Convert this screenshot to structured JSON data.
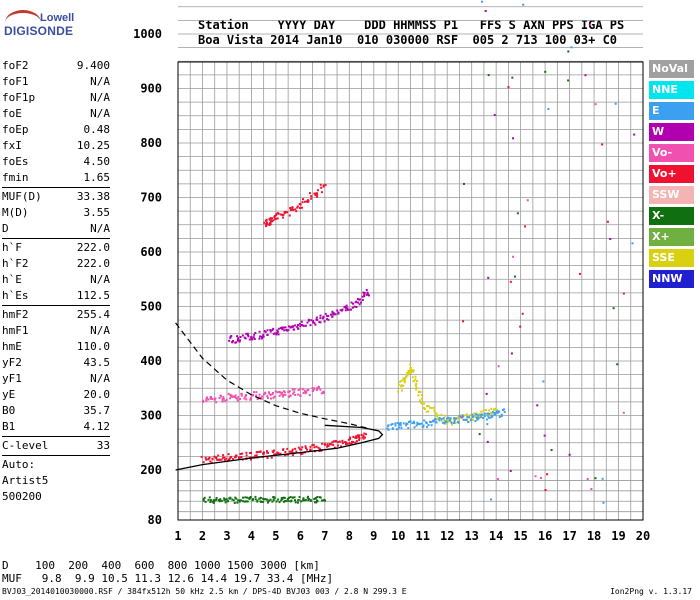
{
  "logo": {
    "line1": "Lowell",
    "line2": "DIGISONDE"
  },
  "header": {
    "labels": "Station    YYYY DAY    DDD HHMMSS P1   FFS S AXN PPS IGA PS",
    "values": "Boa Vista 2014 Jan10  010 030000 RSF  005 2 713 100 03+ C0"
  },
  "params": [
    {
      "name": "foF2",
      "value": "9.400"
    },
    {
      "name": "foF1",
      "value": "N/A"
    },
    {
      "name": "foF1p",
      "value": "N/A"
    },
    {
      "name": "foE",
      "value": "N/A"
    },
    {
      "name": "foEp",
      "value": "0.48"
    },
    {
      "name": "fxI",
      "value": "10.25"
    },
    {
      "name": "foEs",
      "value": "4.50"
    },
    {
      "name": "fmin",
      "value": "1.65"
    },
    {
      "sep": true
    },
    {
      "name": "MUF(D)",
      "value": "33.38"
    },
    {
      "name": "M(D)",
      "value": "3.55"
    },
    {
      "name": "D",
      "value": "N/A"
    },
    {
      "sep": true
    },
    {
      "name": "h`F",
      "value": "222.0"
    },
    {
      "name": "h`F2",
      "value": "222.0"
    },
    {
      "name": "h`E",
      "value": "N/A"
    },
    {
      "name": "h`Es",
      "value": "112.5"
    },
    {
      "sep": true
    },
    {
      "name": "hmF2",
      "value": "255.4"
    },
    {
      "name": "hmF1",
      "value": "N/A"
    },
    {
      "name": "hmE",
      "value": "110.0"
    },
    {
      "name": "yF2",
      "value": "43.5"
    },
    {
      "name": "yF1",
      "value": "N/A"
    },
    {
      "name": "yE",
      "value": "20.0"
    },
    {
      "name": "B0",
      "value": "35.7"
    },
    {
      "name": "B1",
      "value": "4.12"
    },
    {
      "sep": true
    },
    {
      "name": "C-level",
      "value": "33"
    },
    {
      "sep": true
    }
  ],
  "auto": {
    "line1": "Auto:",
    "line2": "Artist5",
    "line3": "500200"
  },
  "legend": [
    {
      "label": "NoVal",
      "color": "#a0a0a0"
    },
    {
      "label": "NNE",
      "color": "#00e5ee"
    },
    {
      "label": "E",
      "color": "#3ca0f0"
    },
    {
      "label": "W",
      "color": "#b000b0"
    },
    {
      "label": "Vo-",
      "color": "#f050b0"
    },
    {
      "label": "Vo+",
      "color": "#f01030"
    },
    {
      "label": "SSW",
      "color": "#f4b4b4"
    },
    {
      "label": "X-",
      "color": "#107010"
    },
    {
      "label": "X+",
      "color": "#70b040"
    },
    {
      "label": "SSE",
      "color": "#d8d010"
    },
    {
      "label": "NNW",
      "color": "#2020d0"
    }
  ],
  "dmuf": {
    "d_line": "D    100  200  400  600  800 1000 1500 3000 [km]",
    "muf_line": "MUF   9.8  9.9 10.5 11.3 12.6 14.4 19.7 33.4 [MHz]"
  },
  "footer": "BVJ03_2014010030000.RSF / 384fx512h 50 kHz 2.5 km / DPS-4D BVJ03 003 / 2.8 N 299.3 E",
  "version": "Ion2Png v. 1.3.17",
  "chart_data": {
    "type": "scatter",
    "x_ticks": [
      "1",
      "2",
      "3",
      "4",
      "5",
      "6",
      "7",
      "8",
      "9",
      "10",
      "11",
      "12",
      "13",
      "14",
      "15",
      "16",
      "17",
      "18",
      "19",
      "20"
    ],
    "y_ticks": [
      "80",
      "200",
      "300",
      "400",
      "500",
      "600",
      "700",
      "800",
      "900",
      "1000",
      "1100",
      "1200"
    ],
    "xlim": [
      1,
      20
    ],
    "ylim": [
      80,
      1200
    ],
    "grid": true,
    "legend_position": "right",
    "traces": [
      {
        "name": "Vo+",
        "x": [
          2.0,
          3.0,
          4.0,
          5.0,
          6.0,
          7.0,
          8.0,
          8.6
        ],
        "y": [
          220,
          225,
          228,
          232,
          238,
          245,
          255,
          268
        ]
      },
      {
        "name": "W",
        "x": [
          3.0,
          4.0,
          5.0,
          6.0,
          7.0,
          8.0,
          8.8
        ],
        "y": [
          440,
          447,
          456,
          468,
          482,
          500,
          530
        ]
      },
      {
        "name": "Vo+",
        "x": [
          4.5,
          5.0,
          6.0,
          7.0
        ],
        "y": [
          655,
          665,
          688,
          725
        ]
      },
      {
        "name": "Vo-",
        "x": [
          2.0,
          3.0,
          4.0,
          5.0,
          6.0,
          7.0
        ],
        "y": [
          330,
          335,
          338,
          340,
          344,
          350
        ]
      },
      {
        "name": "X-",
        "x": [
          2.0,
          3.0,
          4.0,
          5.0,
          6.0,
          7.0
        ],
        "y": [
          130,
          130,
          131,
          131,
          131,
          132
        ]
      },
      {
        "name": "SSE",
        "x": [
          10.0,
          10.5,
          11.0,
          12.0,
          13.0,
          14.0
        ],
        "y": [
          350,
          390,
          320,
          290,
          300,
          310
        ]
      },
      {
        "name": "E",
        "x": [
          9.5,
          10.5,
          11.5,
          12.5,
          13.5,
          14.3
        ],
        "y": [
          280,
          285,
          290,
          295,
          300,
          308
        ]
      }
    ],
    "profile_curve": {
      "x": [
        0.9,
        2.0,
        4.0,
        6.0,
        7.5,
        8.5,
        9.2,
        9.35,
        9.2,
        8.5,
        7.0
      ],
      "y": [
        200,
        210,
        222,
        232,
        240,
        250,
        258,
        265,
        272,
        278,
        282
      ]
    },
    "dashed_curve": {
      "x": [
        0.9,
        2.0,
        3.0,
        4.0,
        5.0,
        6.0,
        7.0,
        8.0,
        8.8
      ],
      "y": [
        470,
        405,
        365,
        338,
        318,
        304,
        294,
        285,
        276
      ]
    }
  }
}
